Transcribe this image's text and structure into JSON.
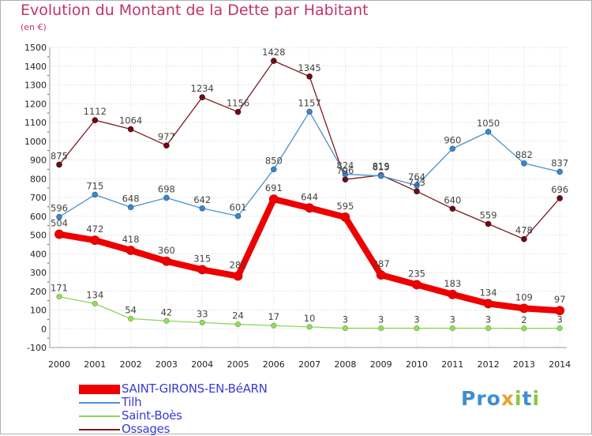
{
  "title": "Evolution du Montant de la Dette par Habitant",
  "subtitle": "(en €)",
  "logo": {
    "text": "Proxiti",
    "colors": [
      "#3d8fd0",
      "#e8a32a",
      "#8ac63f"
    ]
  },
  "chart_data": {
    "type": "line",
    "title": "Evolution du Montant de la Dette par Habitant",
    "ylabel": "(en €)",
    "xlabel": "",
    "categories": [
      "2000",
      "2001",
      "2002",
      "2003",
      "2004",
      "2005",
      "2006",
      "2007",
      "2008",
      "2009",
      "2010",
      "2011",
      "2012",
      "2013",
      "2014"
    ],
    "ylim": [
      -100,
      1500
    ],
    "yticks": [
      -100,
      0,
      100,
      200,
      300,
      400,
      500,
      600,
      700,
      800,
      900,
      1000,
      1100,
      1200,
      1300,
      1400,
      1500
    ],
    "grid": true,
    "legend": "bottom-left",
    "series": [
      {
        "name": "Ossages",
        "color": "#7a1a22",
        "values": [
          875,
          1112,
          1064,
          977,
          1234,
          1156,
          1428,
          1345,
          796,
          819,
          733,
          640,
          559,
          478,
          696
        ]
      },
      {
        "name": "Tilh",
        "color": "#4a90cc",
        "values": [
          596,
          715,
          648,
          698,
          642,
          601,
          850,
          1157,
          824,
          815,
          764,
          960,
          1050,
          882,
          837
        ]
      },
      {
        "name": "Saint-Boès",
        "color": "#8ed45a",
        "values": [
          171,
          134,
          54,
          42,
          33,
          24,
          17,
          10,
          3,
          3,
          3,
          3,
          3,
          2,
          3
        ]
      },
      {
        "name": "SAINT-GIRONS-EN-BéARN",
        "color": "#ee0000",
        "values": [
          504,
          472,
          418,
          360,
          315,
          281,
          691,
          644,
          595,
          287,
          235,
          183,
          134,
          109,
          97
        ]
      }
    ]
  }
}
